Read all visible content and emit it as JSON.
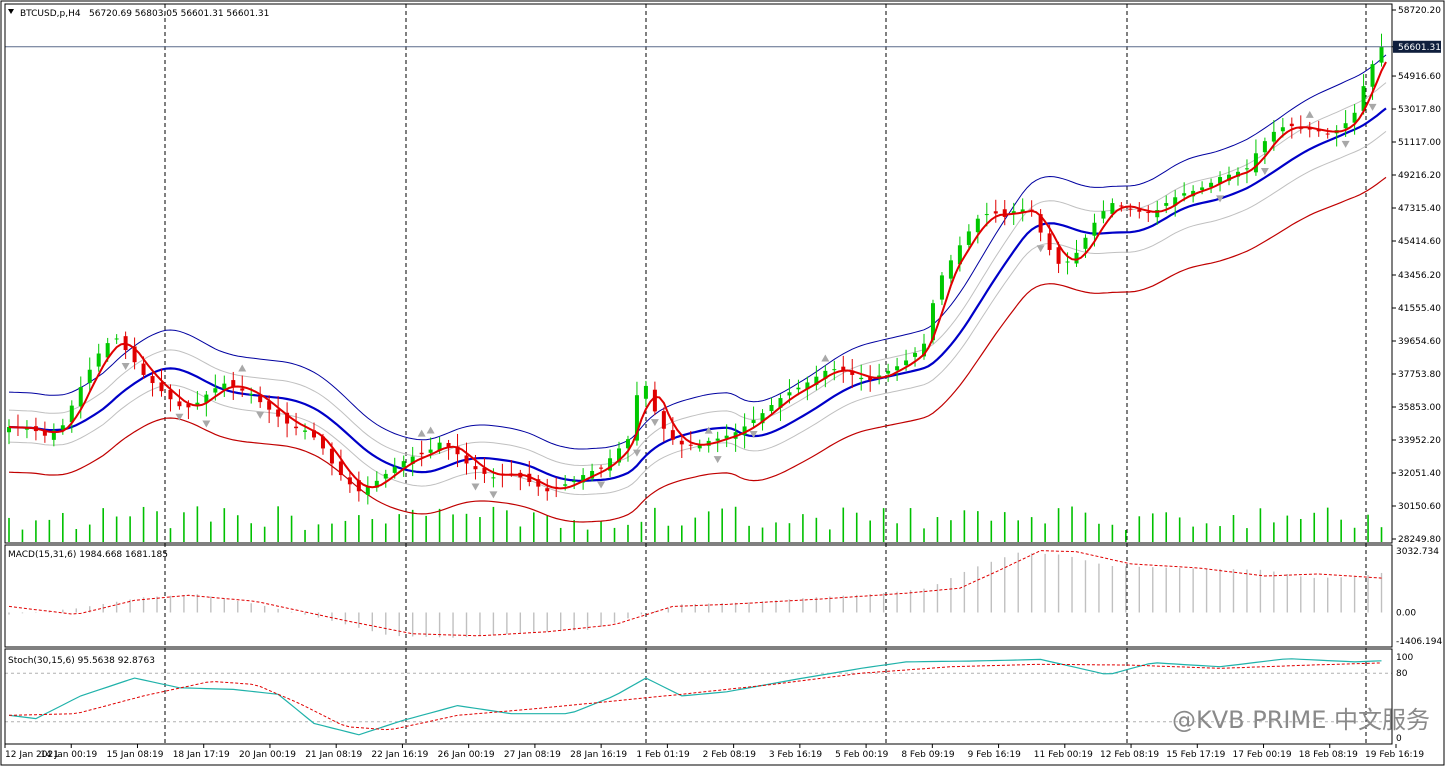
{
  "header": {
    "symbol": "BTCUSD,p,H4",
    "ohlc": "56720.69 56803.05 56601.31 56601.31",
    "last_price": "56601.31"
  },
  "macd_pane": {
    "label": "MACD(15,31,6) 1984.668 1681.185",
    "ticks": [
      "3032.734",
      "0.00",
      "-1406.194"
    ]
  },
  "stoch_pane": {
    "label": "Stoch(30,15,6) 95.5638 92.8763",
    "ticks": [
      "100",
      "80",
      "0"
    ]
  },
  "watermark": "@KVB PRIME 中文服务",
  "colors": {
    "bull": "#00c800",
    "bear": "#e00000",
    "ma_fast": "#e00000",
    "ma_mid": "#0000c8",
    "env_outer": "#0000a0",
    "env_inner": "#c0c0c0",
    "env_low": "#c00000",
    "volume": "#00c000",
    "macd_hist": "#c0c0c0",
    "macd_signal": "#e00000",
    "stoch_main": "#20b2aa",
    "stoch_signal": "#e00000",
    "grid_vline": "#000000"
  },
  "chart_data": [
    {
      "type": "candlestick",
      "title": "BTCUSD,p,H4",
      "y_ticks": [
        "58720.20",
        "56601.31",
        "54916.60",
        "53017.80",
        "51117.00",
        "49216.20",
        "47315.40",
        "45414.60",
        "43456.20",
        "41555.40",
        "39654.60",
        "37753.80",
        "35853.00",
        "33952.20",
        "32051.40",
        "30150.60",
        "28249.80"
      ],
      "ylim": [
        28249.8,
        58720.2
      ],
      "x_tick_labels": [
        "12 Jan 2021",
        "14 Jan 00:19",
        "15 Jan 08:19",
        "18 Jan 17:19",
        "20 Jan 00:19",
        "21 Jan 08:19",
        "22 Jan 16:19",
        "26 Jan 00:19",
        "27 Jan 08:19",
        "28 Jan 16:19",
        "1 Feb 01:19",
        "2 Feb 08:19",
        "3 Feb 16:19",
        "5 Feb 00:19",
        "8 Feb 09:19",
        "9 Feb 16:19",
        "11 Feb 00:19",
        "12 Feb 08:19",
        "15 Feb 17:19",
        "17 Feb 00:19",
        "18 Feb 08:19",
        "19 Feb 16:19"
      ],
      "close_path": [
        [
          0,
          34700
        ],
        [
          5,
          34600
        ],
        [
          8,
          34200
        ],
        [
          12,
          34800
        ],
        [
          15,
          36500
        ],
        [
          18,
          38000
        ],
        [
          21,
          39400
        ],
        [
          24,
          39800
        ],
        [
          27,
          38800
        ],
        [
          30,
          37700
        ],
        [
          33,
          37000
        ],
        [
          36,
          36300
        ],
        [
          39,
          35700
        ],
        [
          42,
          36100
        ],
        [
          45,
          36800
        ],
        [
          48,
          37200
        ],
        [
          51,
          36900
        ],
        [
          54,
          36600
        ],
        [
          57,
          35900
        ],
        [
          60,
          35300
        ],
        [
          63,
          34700
        ],
        [
          66,
          34500
        ],
        [
          69,
          33900
        ],
        [
          72,
          32600
        ],
        [
          75,
          31600
        ],
        [
          78,
          31000
        ],
        [
          81,
          31400
        ],
        [
          84,
          32000
        ],
        [
          87,
          32600
        ],
        [
          90,
          33000
        ],
        [
          93,
          33200
        ],
        [
          96,
          33800
        ],
        [
          99,
          33400
        ],
        [
          102,
          32600
        ],
        [
          105,
          32100
        ],
        [
          108,
          31800
        ],
        [
          111,
          32100
        ],
        [
          114,
          31800
        ],
        [
          117,
          31400
        ],
        [
          120,
          31000
        ],
        [
          123,
          31300
        ],
        [
          126,
          31600
        ],
        [
          129,
          32100
        ],
        [
          132,
          32300
        ],
        [
          135,
          33200
        ],
        [
          138,
          34000
        ],
        [
          141,
          37800
        ],
        [
          144,
          35600
        ],
        [
          147,
          34100
        ],
        [
          150,
          33700
        ],
        [
          153,
          33600
        ],
        [
          156,
          33900
        ],
        [
          159,
          34100
        ],
        [
          162,
          34400
        ],
        [
          165,
          34900
        ],
        [
          168,
          35500
        ],
        [
          171,
          36200
        ],
        [
          174,
          36700
        ],
        [
          177,
          37100
        ],
        [
          180,
          37600
        ],
        [
          183,
          38100
        ],
        [
          186,
          37900
        ],
        [
          189,
          37600
        ],
        [
          192,
          37400
        ],
        [
          195,
          37800
        ],
        [
          198,
          38200
        ],
        [
          201,
          38700
        ],
        [
          204,
          39500
        ],
        [
          207,
          43000
        ],
        [
          210,
          44300
        ],
        [
          213,
          45600
        ],
        [
          216,
          46700
        ],
        [
          219,
          47100
        ],
        [
          222,
          46800
        ],
        [
          225,
          47300
        ],
        [
          228,
          47100
        ],
        [
          231,
          45300
        ],
        [
          234,
          44100
        ],
        [
          237,
          44300
        ],
        [
          240,
          45600
        ],
        [
          243,
          46900
        ],
        [
          246,
          47600
        ],
        [
          249,
          47300
        ],
        [
          252,
          47100
        ],
        [
          255,
          47000
        ],
        [
          258,
          47600
        ],
        [
          261,
          48100
        ],
        [
          264,
          48300
        ],
        [
          267,
          48600
        ],
        [
          270,
          49100
        ],
        [
          273,
          49300
        ],
        [
          276,
          49600
        ],
        [
          279,
          50900
        ],
        [
          282,
          51700
        ],
        [
          285,
          52100
        ],
        [
          288,
          51900
        ],
        [
          291,
          51800
        ],
        [
          294,
          51600
        ],
        [
          297,
          51900
        ],
        [
          300,
          52800
        ],
        [
          303,
          55100
        ],
        [
          306,
          56600
        ],
        [
          307,
          56601.31
        ]
      ],
      "volume_max": 30150.6
    },
    {
      "type": "macd",
      "title": "MACD(15,31,6) 1984.668 1681.185",
      "ylim": [
        -1406.194,
        3032.734
      ],
      "hist_path": [
        [
          0,
          -100
        ],
        [
          15,
          200
        ],
        [
          30,
          750
        ],
        [
          42,
          900
        ],
        [
          55,
          420
        ],
        [
          70,
          -300
        ],
        [
          85,
          -1150
        ],
        [
          100,
          -1250
        ],
        [
          115,
          -1000
        ],
        [
          130,
          -850
        ],
        [
          140,
          -150
        ],
        [
          150,
          400
        ],
        [
          165,
          500
        ],
        [
          180,
          750
        ],
        [
          195,
          950
        ],
        [
          205,
          1200
        ],
        [
          215,
          2200
        ],
        [
          225,
          2950
        ],
        [
          235,
          2850
        ],
        [
          245,
          2300
        ],
        [
          260,
          2200
        ],
        [
          280,
          2100
        ],
        [
          290,
          1700
        ],
        [
          300,
          1750
        ],
        [
          307,
          1984.668
        ]
      ],
      "signal_path": [
        [
          0,
          300
        ],
        [
          15,
          -100
        ],
        [
          28,
          600
        ],
        [
          40,
          850
        ],
        [
          55,
          550
        ],
        [
          75,
          -400
        ],
        [
          90,
          -1050
        ],
        [
          105,
          -1150
        ],
        [
          120,
          -950
        ],
        [
          135,
          -600
        ],
        [
          148,
          300
        ],
        [
          160,
          400
        ],
        [
          180,
          650
        ],
        [
          200,
          950
        ],
        [
          212,
          1200
        ],
        [
          220,
          2000
        ],
        [
          230,
          3050
        ],
        [
          238,
          3000
        ],
        [
          250,
          2400
        ],
        [
          265,
          2200
        ],
        [
          280,
          1800
        ],
        [
          292,
          1900
        ],
        [
          307,
          1681.185
        ]
      ]
    },
    {
      "type": "stochastic",
      "title": "Stoch(30,15,6) 95.5638 92.8763",
      "ylim": [
        0,
        100
      ],
      "levels": [
        20,
        80
      ],
      "main_path": [
        [
          0,
          28
        ],
        [
          6,
          24
        ],
        [
          16,
          52
        ],
        [
          28,
          74
        ],
        [
          38,
          62
        ],
        [
          50,
          60
        ],
        [
          60,
          54
        ],
        [
          68,
          18
        ],
        [
          78,
          4
        ],
        [
          88,
          22
        ],
        [
          100,
          40
        ],
        [
          112,
          30
        ],
        [
          125,
          30
        ],
        [
          135,
          52
        ],
        [
          142,
          74
        ],
        [
          150,
          52
        ],
        [
          160,
          57
        ],
        [
          175,
          72
        ],
        [
          190,
          86
        ],
        [
          200,
          94
        ],
        [
          215,
          95
        ],
        [
          230,
          97
        ],
        [
          245,
          78
        ],
        [
          255,
          93
        ],
        [
          270,
          88
        ],
        [
          285,
          98
        ],
        [
          300,
          94
        ],
        [
          307,
          95.5638
        ]
      ],
      "signal_path": [
        [
          0,
          28
        ],
        [
          15,
          30
        ],
        [
          30,
          52
        ],
        [
          45,
          70
        ],
        [
          55,
          66
        ],
        [
          65,
          42
        ],
        [
          75,
          14
        ],
        [
          85,
          10
        ],
        [
          100,
          28
        ],
        [
          115,
          35
        ],
        [
          130,
          43
        ],
        [
          150,
          54
        ],
        [
          170,
          66
        ],
        [
          190,
          80
        ],
        [
          210,
          88
        ],
        [
          230,
          91
        ],
        [
          250,
          90
        ],
        [
          270,
          86
        ],
        [
          290,
          90
        ],
        [
          307,
          92.8763
        ]
      ]
    }
  ]
}
